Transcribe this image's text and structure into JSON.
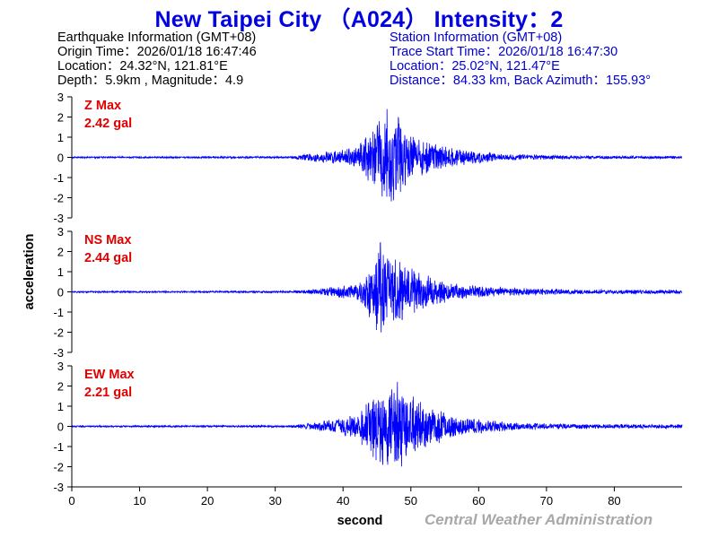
{
  "header": {
    "title": "New Taipei City （A024） Intensity：2"
  },
  "earthquake_info": {
    "heading": "Earthquake Information  (GMT+08)",
    "origin_time": "Origin Time：2026/01/18 16:47:46",
    "location": "Location：24.32°N, 121.81°E",
    "depth_magnitude": "Depth：5.9km , Magnitude：4.9"
  },
  "station_info": {
    "heading": "Station Information  (GMT+08)",
    "trace_start": "Trace Start Time：2026/01/18 16:47:30",
    "location": "Location：25.02°N, 121.47°E",
    "distance": "Distance：84.33 km, Back Azimuth：155.93°"
  },
  "footer": {
    "credit": "Central Weather Administration"
  },
  "colors": {
    "title": "#0000e0",
    "trace": "#0000ff",
    "channel_label": "#e00000",
    "station_info": "#0000cc",
    "footer": "#a8a8a8"
  },
  "chart_data": {
    "type": "line",
    "xlabel": "second",
    "ylabel": "acceleration",
    "xlim": [
      0,
      90
    ],
    "ylim": [
      -3,
      3
    ],
    "x_ticks": [
      "0",
      "10",
      "20",
      "30",
      "40",
      "50",
      "60",
      "70",
      "80"
    ],
    "y_ticks": [
      "3",
      "2",
      "1",
      "0",
      "-1",
      "-2",
      "-3"
    ],
    "grid": false,
    "sample_note": "envelope approximated",
    "panels": [
      {
        "channel": "Z",
        "max_label": "Z Max",
        "max_value": "2.42 gal",
        "p_arrival": 32.5,
        "envelope": {
          "x": [
            0,
            32,
            36,
            42,
            44,
            46.5,
            48,
            50,
            53,
            56,
            60,
            65,
            75,
            90
          ],
          "y": [
            0.04,
            0.05,
            0.25,
            0.5,
            1.3,
            2.4,
            2.1,
            1.3,
            0.8,
            0.5,
            0.3,
            0.15,
            0.08,
            0.07
          ]
        }
      },
      {
        "channel": "NS",
        "max_label": "NS Max",
        "max_value": "2.44 gal",
        "p_arrival": 32.5,
        "envelope": {
          "x": [
            0,
            32,
            36,
            42,
            44,
            45.5,
            47,
            49,
            52,
            56,
            60,
            65,
            75,
            90
          ],
          "y": [
            0.04,
            0.05,
            0.15,
            0.4,
            1.4,
            2.44,
            2.0,
            1.4,
            0.9,
            0.45,
            0.3,
            0.2,
            0.12,
            0.1
          ]
        }
      },
      {
        "channel": "EW",
        "max_label": "EW Max",
        "max_value": "2.21 gal",
        "p_arrival": 32.5,
        "envelope": {
          "x": [
            0,
            32,
            36,
            42,
            44,
            46,
            48,
            50,
            53,
            56,
            60,
            65,
            75,
            90
          ],
          "y": [
            0.04,
            0.05,
            0.2,
            0.6,
            1.5,
            2.0,
            2.21,
            1.6,
            1.0,
            0.6,
            0.35,
            0.2,
            0.12,
            0.1
          ]
        }
      }
    ]
  }
}
